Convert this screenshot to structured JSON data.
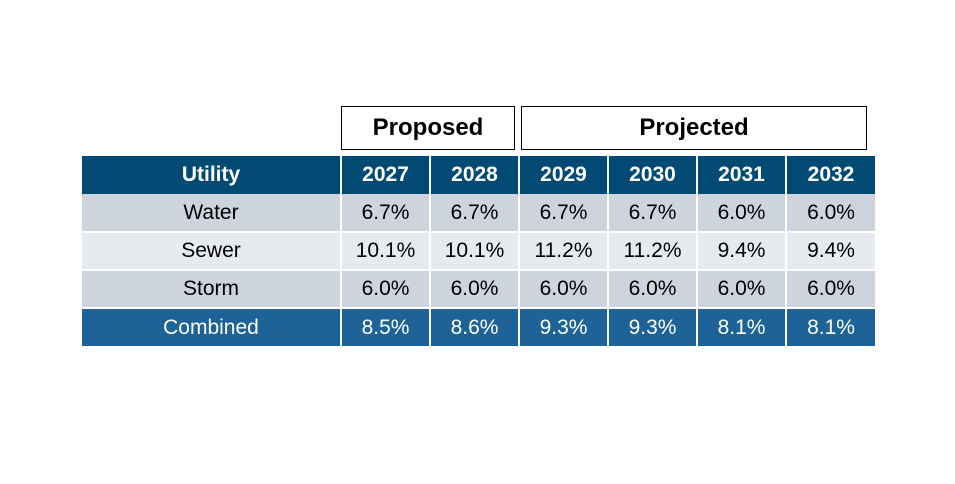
{
  "groups": {
    "proposed": "Proposed",
    "projected": "Projected"
  },
  "chart_data": {
    "type": "table",
    "columns": [
      "Utility",
      "2027",
      "2028",
      "2029",
      "2030",
      "2031",
      "2032"
    ],
    "rows": [
      {
        "utility": "Water",
        "values": [
          "6.7%",
          "6.7%",
          "6.7%",
          "6.7%",
          "6.0%",
          "6.0%"
        ]
      },
      {
        "utility": "Sewer",
        "values": [
          "10.1%",
          "10.1%",
          "11.2%",
          "11.2%",
          "9.4%",
          "9.4%"
        ]
      },
      {
        "utility": "Storm",
        "values": [
          "6.0%",
          "6.0%",
          "6.0%",
          "6.0%",
          "6.0%",
          "6.0%"
        ]
      },
      {
        "utility": "Combined",
        "values": [
          "8.5%",
          "8.6%",
          "9.3%",
          "9.3%",
          "8.1%",
          "8.1%"
        ]
      }
    ]
  },
  "colors": {
    "header": "#004a74",
    "row_dark": "#cdd4de",
    "row_light": "#e7ebf0",
    "combined": "#1d6397"
  }
}
